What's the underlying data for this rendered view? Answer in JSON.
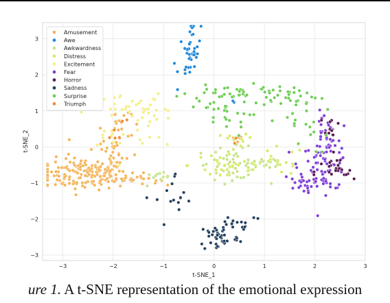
{
  "caption": {
    "prefix": "ure 1.",
    "text": " A t-SNE representation of the emotional expression"
  },
  "chart_data": {
    "type": "scatter",
    "title": "",
    "xlabel": "t-SNE_1",
    "ylabel": "t-SNE_2",
    "xlim": [
      -3.4,
      3.0
    ],
    "ylim": [
      -3.15,
      3.45
    ],
    "xticks": [
      -3,
      -2,
      -1,
      0,
      1,
      2,
      3
    ],
    "yticks": [
      -3,
      -2,
      -1,
      0,
      1,
      2,
      3
    ],
    "grid": true,
    "legend_position": "top-left",
    "series": [
      {
        "name": "Amusement",
        "color": "#f5b55a",
        "regions": [
          {
            "cx": -2.6,
            "cy": -0.75,
            "sx": 0.45,
            "sy": 0.22,
            "n": 150
          },
          {
            "cx": -2.0,
            "cy": -0.2,
            "sx": 0.25,
            "sy": 0.35,
            "n": 35
          },
          {
            "cx": -1.6,
            "cy": -0.9,
            "sx": 0.25,
            "sy": 0.08,
            "n": 25
          },
          {
            "cx": -1.95,
            "cy": 0.7,
            "sx": 0.15,
            "sy": 0.25,
            "n": 15
          },
          {
            "cx": 0.5,
            "cy": 0.1,
            "sx": 0.15,
            "sy": 0.2,
            "n": 5
          }
        ]
      },
      {
        "name": "Awe",
        "color": "#1f88d8",
        "regions": [
          {
            "cx": -0.42,
            "cy": 2.85,
            "sx": 0.08,
            "sy": 0.3,
            "n": 30
          },
          {
            "cx": -0.6,
            "cy": 2.1,
            "sx": 0.12,
            "sy": 0.15,
            "n": 10
          },
          {
            "cx": 0.4,
            "cy": 1.3,
            "sx": 0.05,
            "sy": 0.05,
            "n": 2
          }
        ]
      },
      {
        "name": "Awkwardness",
        "color": "#c8e48a",
        "regions": [
          {
            "cx": 0.35,
            "cy": -0.45,
            "sx": 0.35,
            "sy": 0.22,
            "n": 45
          },
          {
            "cx": -1.05,
            "cy": -0.9,
            "sx": 0.2,
            "sy": 0.1,
            "n": 12
          },
          {
            "cx": 0.9,
            "cy": -0.5,
            "sx": 0.3,
            "sy": 0.15,
            "n": 15
          }
        ]
      },
      {
        "name": "Distress",
        "color": "#d6ec68",
        "regions": [
          {
            "cx": 0.3,
            "cy": -0.5,
            "sx": 0.4,
            "sy": 0.25,
            "n": 30
          },
          {
            "cx": 1.3,
            "cy": -0.4,
            "sx": 0.25,
            "sy": 0.2,
            "n": 15
          },
          {
            "cx": 0.4,
            "cy": 0.1,
            "sx": 0.2,
            "sy": 0.2,
            "n": 10
          }
        ]
      },
      {
        "name": "Excitement",
        "color": "#f4ef8a",
        "regions": [
          {
            "cx": -1.7,
            "cy": 1.1,
            "sx": 0.35,
            "sy": 0.15,
            "n": 30
          },
          {
            "cx": -1.2,
            "cy": 0.5,
            "sx": 0.3,
            "sy": 0.4,
            "n": 20
          },
          {
            "cx": -2.0,
            "cy": 0.3,
            "sx": 0.2,
            "sy": 0.25,
            "n": 10
          }
        ]
      },
      {
        "name": "Fear",
        "color": "#7f3fd6",
        "regions": [
          {
            "cx": 2.2,
            "cy": -0.5,
            "sx": 0.25,
            "sy": 0.35,
            "n": 70
          },
          {
            "cx": 2.2,
            "cy": 0.35,
            "sx": 0.12,
            "sy": 0.3,
            "n": 30
          },
          {
            "cx": 1.75,
            "cy": -1.0,
            "sx": 0.2,
            "sy": 0.12,
            "n": 20
          }
        ]
      },
      {
        "name": "Horror",
        "color": "#5a1a50",
        "regions": [
          {
            "cx": 2.4,
            "cy": -0.7,
            "sx": 0.2,
            "sy": 0.2,
            "n": 22
          },
          {
            "cx": 2.3,
            "cy": 0.4,
            "sx": 0.1,
            "sy": 0.3,
            "n": 10
          }
        ]
      },
      {
        "name": "Sadness",
        "color": "#24405e",
        "regions": [
          {
            "cx": 0.1,
            "cy": -2.5,
            "sx": 0.2,
            "sy": 0.2,
            "n": 40
          },
          {
            "cx": 0.5,
            "cy": -2.1,
            "sx": 0.25,
            "sy": 0.15,
            "n": 18
          },
          {
            "cx": -0.75,
            "cy": -1.5,
            "sx": 0.2,
            "sy": 0.4,
            "n": 15
          }
        ]
      },
      {
        "name": "Surprise",
        "color": "#6fce55",
        "regions": [
          {
            "cx": 0.5,
            "cy": 1.55,
            "sx": 0.5,
            "sy": 0.12,
            "n": 30
          },
          {
            "cx": 1.5,
            "cy": 1.4,
            "sx": 0.35,
            "sy": 0.12,
            "n": 25
          },
          {
            "cx": -0.1,
            "cy": 1.3,
            "sx": 0.3,
            "sy": 0.3,
            "n": 15
          },
          {
            "cx": 0.2,
            "cy": 0.8,
            "sx": 0.25,
            "sy": 0.25,
            "n": 20
          },
          {
            "cx": 1.7,
            "cy": 0.6,
            "sx": 0.3,
            "sy": 0.4,
            "n": 20
          }
        ]
      },
      {
        "name": "Triumph",
        "color": "#ef8a3a",
        "regions": [
          {
            "cx": -1.95,
            "cy": 0.55,
            "sx": 0.1,
            "sy": 0.2,
            "n": 8
          },
          {
            "cx": 0.45,
            "cy": 0.1,
            "sx": 0.08,
            "sy": 0.08,
            "n": 2
          }
        ]
      }
    ]
  }
}
